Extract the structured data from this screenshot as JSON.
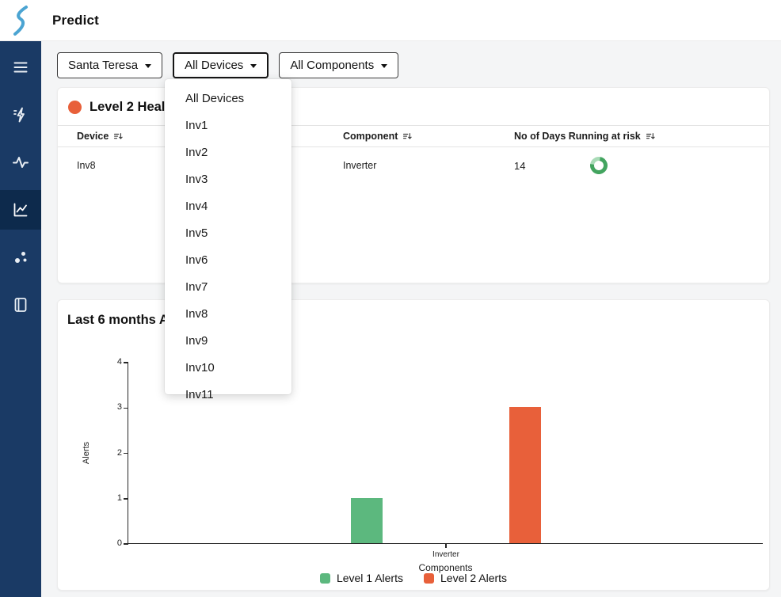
{
  "header": {
    "title": "Predict"
  },
  "sidebar": {
    "icons": [
      "menu-icon",
      "predict-bolt-icon",
      "activity-icon",
      "trend-chart-icon",
      "scatter-icon",
      "reports-icon"
    ],
    "active_icon": "trend-chart-icon"
  },
  "filters": {
    "site": "Santa Teresa",
    "device": "All Devices",
    "component": "All Components"
  },
  "device_dropdown": {
    "items": [
      "All Devices",
      "Inv1",
      "Inv2",
      "Inv3",
      "Inv4",
      "Inv5",
      "Inv6",
      "Inv7",
      "Inv8",
      "Inv9",
      "Inv10",
      "Inv11"
    ]
  },
  "health_card": {
    "title": "Level 2 Health Alerts",
    "columns": [
      "Device",
      "Component",
      "No of Days Running at risk"
    ],
    "rows": [
      {
        "device": "Inv8",
        "component": "Inverter",
        "days": "14",
        "status_color": "#43a45f",
        "status_color_light": "#a9dbb7"
      }
    ]
  },
  "chart_card": {
    "title": "Last 6 months Alerts"
  },
  "chart_data": {
    "type": "bar",
    "categories": [
      "Inverter"
    ],
    "series": [
      {
        "name": "Level 1 Alerts",
        "values": [
          1
        ],
        "color": "#5cb87e"
      },
      {
        "name": "Level 2 Alerts",
        "values": [
          3
        ],
        "color": "#e8603a"
      }
    ],
    "title": "Last 6 months Alerts",
    "xlabel": "Components",
    "ylabel": "Alerts",
    "ylim": [
      0,
      4
    ],
    "yticks": [
      0,
      1,
      2,
      3,
      4
    ],
    "grid": false,
    "legend_position": "bottom"
  },
  "colors": {
    "sidebar_bg": "#1a3a65",
    "sidebar_active_bg": "#0d2a4c",
    "logo_blue": "#4ba4d2",
    "alert_orange": "#e8603a",
    "alert_green": "#5cb87e"
  }
}
